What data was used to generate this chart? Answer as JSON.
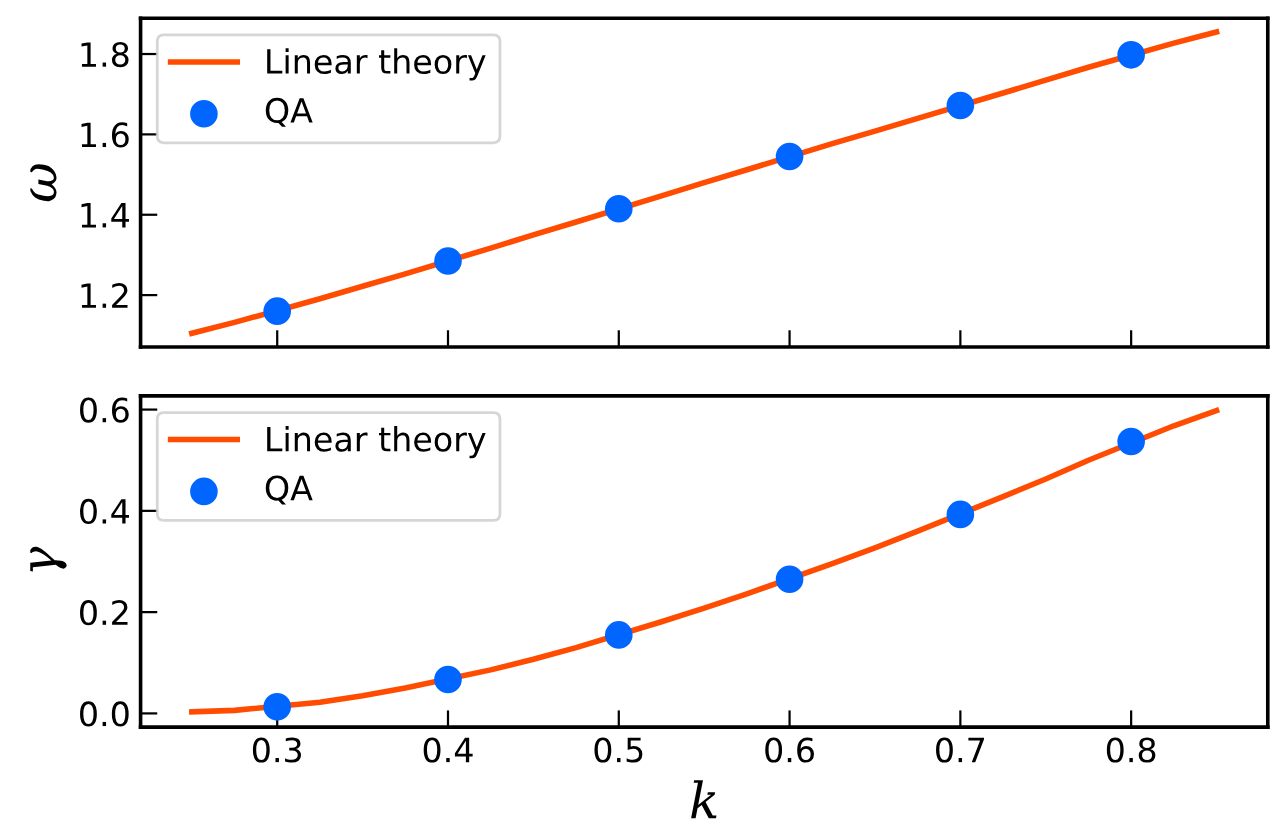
{
  "chart_data": [
    {
      "type": "line",
      "ylabel": "ω",
      "xlim": [
        0.22,
        0.88
      ],
      "ylim": [
        1.071,
        1.889
      ],
      "xticks": [
        0.3,
        0.4,
        0.5,
        0.6,
        0.7,
        0.8
      ],
      "yticks": [
        1.2,
        1.4,
        1.6,
        1.8
      ],
      "tick_labels": "y",
      "legend": "top left",
      "grid": false,
      "series": [
        {
          "name": "Linear theory",
          "color": "#ff4c00",
          "marker": "none",
          "line_style": "solid",
          "x": [
            0.25,
            0.275,
            0.325,
            0.35,
            0.375,
            0.425,
            0.45,
            0.475,
            0.525,
            0.55,
            0.575,
            0.625,
            0.65,
            0.675,
            0.725,
            0.75,
            0.775,
            0.825,
            0.85
          ],
          "values": [
            1.105,
            1.132,
            1.191,
            1.222,
            1.253,
            1.317,
            1.35,
            1.382,
            1.447,
            1.48,
            1.512,
            1.577,
            1.608,
            1.64,
            1.703,
            1.735,
            1.767,
            1.827,
            1.855
          ]
        },
        {
          "name": "QA",
          "type": "scatter",
          "color": "#0066ff",
          "marker": "circle",
          "x": [
            0.3,
            0.4,
            0.5,
            0.6,
            0.7,
            0.8
          ],
          "values": [
            1.16,
            1.285,
            1.415,
            1.545,
            1.672,
            1.798
          ]
        }
      ]
    },
    {
      "type": "line",
      "xlabel": "k",
      "ylabel": "γ",
      "xlim": [
        0.22,
        0.88
      ],
      "ylim": [
        -0.027,
        0.627
      ],
      "xticks": [
        0.3,
        0.4,
        0.5,
        0.6,
        0.7,
        0.8
      ],
      "yticks": [
        {
          "value": 0.0,
          "label": "0.0"
        },
        0.2,
        0.4,
        0.6
      ],
      "legend": "top left",
      "grid": false,
      "series": [
        {
          "name": "Linear theory",
          "color": "#ff4c00",
          "marker": "none",
          "line_style": "solid",
          "x": [
            0.25,
            0.275,
            0.325,
            0.35,
            0.375,
            0.425,
            0.45,
            0.475,
            0.525,
            0.55,
            0.575,
            0.625,
            0.65,
            0.675,
            0.725,
            0.75,
            0.775,
            0.825,
            0.85
          ],
          "values": [
            0.003,
            0.006,
            0.022,
            0.035,
            0.05,
            0.086,
            0.107,
            0.13,
            0.181,
            0.208,
            0.236,
            0.296,
            0.327,
            0.36,
            0.428,
            0.463,
            0.5,
            0.568,
            0.598
          ]
        },
        {
          "name": "QA",
          "type": "scatter",
          "color": "#0066ff",
          "marker": "circle",
          "x": [
            0.3,
            0.4,
            0.5,
            0.6,
            0.7,
            0.8
          ],
          "values": [
            0.013,
            0.067,
            0.155,
            0.265,
            0.393,
            0.537
          ]
        }
      ]
    }
  ]
}
